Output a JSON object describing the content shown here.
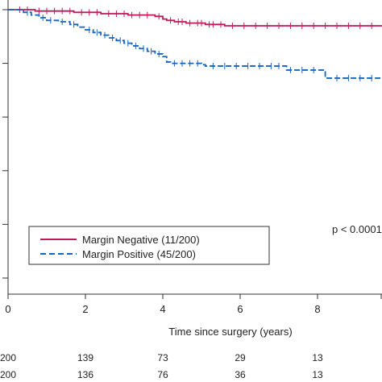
{
  "chart_data": {
    "type": "line",
    "title": "",
    "xlabel": "Time since surgery (years)",
    "ylabel": "",
    "xlim": [
      0,
      10
    ],
    "ylim": [
      0,
      1
    ],
    "x_ticks": [
      0,
      2,
      4,
      6,
      8
    ],
    "x_tick_labels": [
      "0",
      "2",
      "4",
      "6",
      "8"
    ],
    "y_ticks": [
      0.0,
      0.2,
      0.4,
      0.6,
      0.8,
      1.0
    ],
    "grid": false,
    "legend_position": "bottom-left",
    "p_value_label": "p < 0.0001",
    "series": [
      {
        "name": "Margin Negative (11/200)",
        "color": "#c2185b",
        "dash": "solid",
        "steps": [
          [
            0,
            1.0
          ],
          [
            0.7,
            0.995
          ],
          [
            1.7,
            0.99
          ],
          [
            2.4,
            0.985
          ],
          [
            3.1,
            0.98
          ],
          [
            3.8,
            0.975
          ],
          [
            4.0,
            0.965
          ],
          [
            4.1,
            0.96
          ],
          [
            4.3,
            0.955
          ],
          [
            4.6,
            0.95
          ],
          [
            5.1,
            0.945
          ],
          [
            5.6,
            0.94
          ],
          [
            5.9,
            0.94
          ],
          [
            10,
            0.94
          ]
        ],
        "censor_x": [
          0.3,
          0.5,
          0.8,
          1.0,
          1.2,
          1.4,
          1.6,
          1.9,
          2.1,
          2.3,
          2.6,
          2.8,
          3.0,
          3.2,
          3.4,
          3.6,
          3.9,
          4.2,
          4.4,
          4.5,
          4.7,
          4.9,
          5.0,
          5.2,
          5.3,
          5.5,
          5.8,
          6.1,
          6.4,
          6.7,
          7.0,
          7.3,
          7.6,
          7.9,
          8.2,
          8.5,
          8.8,
          9.1,
          9.4,
          9.7
        ]
      },
      {
        "name": "Margin Positive (45/200)",
        "color": "#1565c0",
        "dash": "dashed",
        "steps": [
          [
            0,
            1.0
          ],
          [
            0.4,
            0.99
          ],
          [
            0.6,
            0.98
          ],
          [
            0.8,
            0.97
          ],
          [
            1.0,
            0.96
          ],
          [
            1.3,
            0.955
          ],
          [
            1.6,
            0.945
          ],
          [
            1.8,
            0.935
          ],
          [
            2.0,
            0.925
          ],
          [
            2.2,
            0.915
          ],
          [
            2.4,
            0.905
          ],
          [
            2.6,
            0.895
          ],
          [
            2.8,
            0.885
          ],
          [
            3.0,
            0.875
          ],
          [
            3.2,
            0.865
          ],
          [
            3.4,
            0.855
          ],
          [
            3.6,
            0.845
          ],
          [
            3.8,
            0.835
          ],
          [
            4.0,
            0.825
          ],
          [
            4.1,
            0.805
          ],
          [
            4.2,
            0.8
          ],
          [
            5.0,
            0.795
          ],
          [
            5.1,
            0.79
          ],
          [
            7.2,
            0.775
          ],
          [
            8.2,
            0.745
          ],
          [
            10,
            0.745
          ]
        ],
        "censor_x": [
          0.5,
          0.9,
          1.1,
          1.4,
          1.7,
          2.1,
          2.3,
          2.5,
          2.7,
          2.9,
          3.1,
          3.3,
          3.5,
          3.7,
          3.9,
          4.3,
          4.5,
          4.7,
          4.9,
          5.3,
          5.6,
          5.9,
          6.2,
          6.5,
          6.8,
          7.0,
          7.3,
          7.6,
          7.9,
          8.5,
          8.8,
          9.1,
          9.4,
          9.7
        ]
      }
    ],
    "risk_table": {
      "times": [
        0,
        2,
        4,
        6,
        8
      ],
      "rows": [
        [
          "200",
          "139",
          "73",
          "29",
          "13"
        ],
        [
          "200",
          "136",
          "76",
          "36",
          "13"
        ]
      ]
    }
  }
}
